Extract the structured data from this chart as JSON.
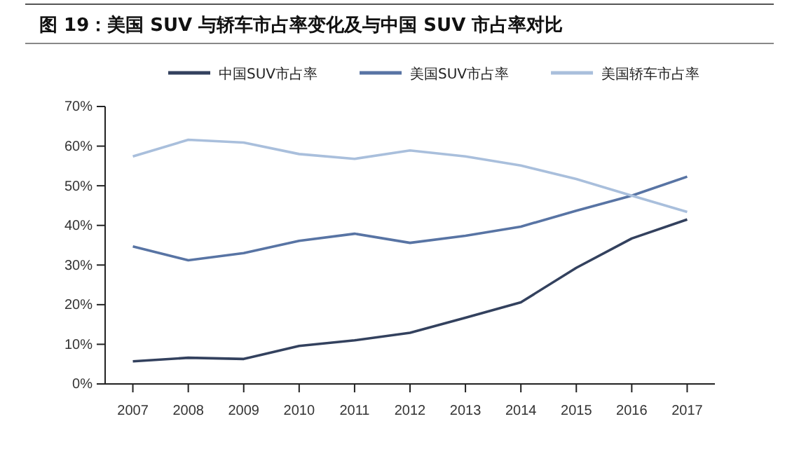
{
  "chart_data": {
    "type": "line",
    "title": "图 19：美国 SUV 与轿车市占率变化及与中国 SUV 市占率对比",
    "categories": [
      "2007",
      "2008",
      "2009",
      "2010",
      "2011",
      "2012",
      "2013",
      "2014",
      "2015",
      "2016",
      "2017"
    ],
    "series": [
      {
        "name": "中国SUV市占率",
        "color": "#33415e",
        "values": [
          5.7,
          6.6,
          6.3,
          9.6,
          11,
          12.9,
          16.7,
          20.6,
          29.3,
          36.7,
          41.5
        ]
      },
      {
        "name": "美国SUV市占率",
        "color": "#5874a4",
        "values": [
          34.7,
          31.2,
          33,
          36.1,
          37.9,
          35.6,
          37.4,
          39.7,
          43.7,
          47.5,
          52.3
        ]
      },
      {
        "name": "美国轿车市占率",
        "color": "#a9bfdc",
        "values": [
          57.4,
          61.6,
          60.9,
          58,
          56.8,
          58.9,
          57.4,
          55.1,
          51.7,
          47.5,
          43.4
        ]
      }
    ],
    "ylim": [
      0,
      70
    ],
    "yticks": [
      {
        "value": 0,
        "label": "0%"
      },
      {
        "value": 10,
        "label": "10%"
      },
      {
        "value": 20,
        "label": "20%"
      },
      {
        "value": 30,
        "label": "30%"
      },
      {
        "value": 40,
        "label": "40%"
      },
      {
        "value": 50,
        "label": "50%"
      },
      {
        "value": 60,
        "label": "60%"
      },
      {
        "value": 70,
        "label": "70%"
      }
    ],
    "grid": false,
    "legend": "top",
    "marker": "none",
    "line_style": "solid"
  }
}
